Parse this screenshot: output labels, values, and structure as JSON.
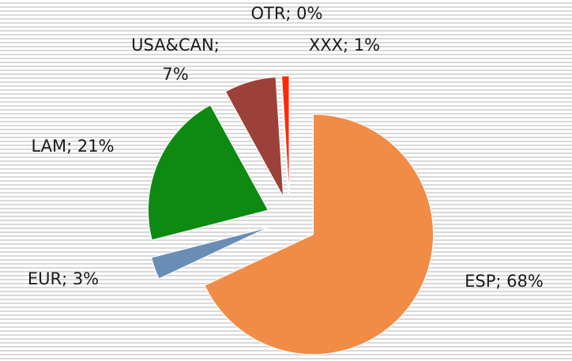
{
  "chart_data": {
    "type": "pie",
    "values": [
      68,
      3,
      21,
      7,
      0,
      1
    ],
    "value_labels": [
      "ESP; 68%",
      "EUR; 3%",
      "LAM; 21%",
      "USA&CAN; 7%",
      "OTR; 0%",
      "XXX; 1%"
    ],
    "colors": [
      "#f08c46",
      "#6a8db5",
      "#0e8a12",
      "#9c4139",
      "#a9a9d4",
      "#ff2a00"
    ],
    "exploded": true
  }
}
